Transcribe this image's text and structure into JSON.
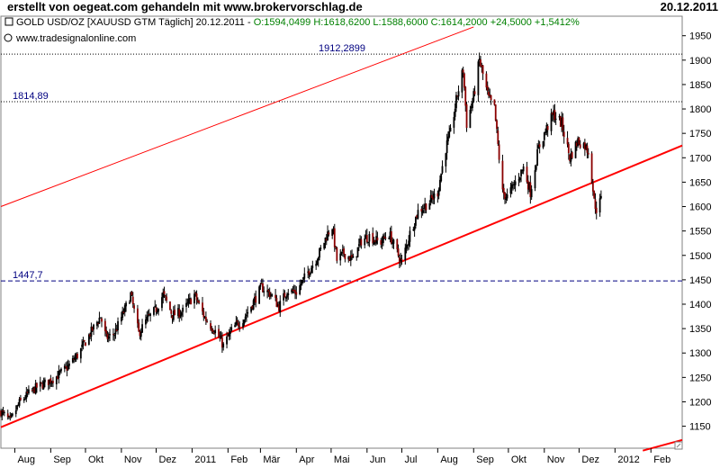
{
  "page": {
    "title_left": "erstellt von oegeat.com gehandeln mit www.brokervorschlag.de",
    "title_right": "20.12.2011"
  },
  "chart_info": {
    "instrument_prefix": "GOLD USD/OZ [XAUUSD GTM  Täglich] 20.12.2011 - ",
    "ohlc_text": "O:1594,0499 H:1618,6200 L:1588,6000 C:1614,2000 +24,5000 +1,5412%",
    "source": "www.tradesignalonline.com",
    "ohlc_color": "#008000"
  },
  "chart_data": {
    "type": "candlestick",
    "title": "GOLD USD/OZ [XAUUSD GTM Täglich] 20.12.2011",
    "ylim": [
      1105,
      1990
    ],
    "yticks": [
      1150,
      1200,
      1250,
      1300,
      1350,
      1400,
      1450,
      1500,
      1550,
      1600,
      1650,
      1700,
      1750,
      1800,
      1850,
      1900,
      1950
    ],
    "xlim": [
      "2010-07-20",
      "2012-02-28"
    ],
    "xticks": [
      {
        "label": "Aug",
        "date": "2010-08-01"
      },
      {
        "label": "Sep",
        "date": "2010-09-01"
      },
      {
        "label": "Okt",
        "date": "2010-10-01"
      },
      {
        "label": "Nov",
        "date": "2010-11-01"
      },
      {
        "label": "Dez",
        "date": "2010-12-01"
      },
      {
        "label": "2011",
        "date": "2011-01-01"
      },
      {
        "label": "Feb",
        "date": "2011-02-01"
      },
      {
        "label": "Mär",
        "date": "2011-03-01"
      },
      {
        "label": "Apr",
        "date": "2011-04-01"
      },
      {
        "label": "Mai",
        "date": "2011-05-01"
      },
      {
        "label": "Jun",
        "date": "2011-06-01"
      },
      {
        "label": "Jul",
        "date": "2011-07-01"
      },
      {
        "label": "Aug",
        "date": "2011-08-01"
      },
      {
        "label": "Sep",
        "date": "2011-09-01"
      },
      {
        "label": "Okt",
        "date": "2011-10-01"
      },
      {
        "label": "Nov",
        "date": "2011-11-01"
      },
      {
        "label": "Dez",
        "date": "2011-12-01"
      },
      {
        "label": "2012",
        "date": "2012-01-01"
      },
      {
        "label": "Feb",
        "date": "2012-02-01"
      }
    ],
    "up_color": "#000000",
    "down_color": "#8b0000",
    "price_path": [
      [
        "2010-07-20",
        1180
      ],
      [
        "2010-07-28",
        1160
      ],
      [
        "2010-08-05",
        1198
      ],
      [
        "2010-08-12",
        1215
      ],
      [
        "2010-08-20",
        1230
      ],
      [
        "2010-08-27",
        1238
      ],
      [
        "2010-09-05",
        1250
      ],
      [
        "2010-09-15",
        1270
      ],
      [
        "2010-09-25",
        1298
      ],
      [
        "2010-10-05",
        1340
      ],
      [
        "2010-10-14",
        1375
      ],
      [
        "2010-10-19",
        1330
      ],
      [
        "2010-10-26",
        1340
      ],
      [
        "2010-11-05",
        1395
      ],
      [
        "2010-11-09",
        1420
      ],
      [
        "2010-11-16",
        1340
      ],
      [
        "2010-11-22",
        1365
      ],
      [
        "2010-12-01",
        1390
      ],
      [
        "2010-12-07",
        1420
      ],
      [
        "2010-12-15",
        1378
      ],
      [
        "2010-12-24",
        1385
      ],
      [
        "2011-01-03",
        1420
      ],
      [
        "2011-01-12",
        1372
      ],
      [
        "2011-01-21",
        1345
      ],
      [
        "2011-01-28",
        1315
      ],
      [
        "2011-02-05",
        1350
      ],
      [
        "2011-02-15",
        1372
      ],
      [
        "2011-02-23",
        1405
      ],
      [
        "2011-03-02",
        1435
      ],
      [
        "2011-03-10",
        1420
      ],
      [
        "2011-03-17",
        1395
      ],
      [
        "2011-03-24",
        1428
      ],
      [
        "2011-04-01",
        1425
      ],
      [
        "2011-04-10",
        1462
      ],
      [
        "2011-04-20",
        1500
      ],
      [
        "2011-04-28",
        1545
      ],
      [
        "2011-05-02",
        1560
      ],
      [
        "2011-05-06",
        1490
      ],
      [
        "2011-05-12",
        1505
      ],
      [
        "2011-05-20",
        1490
      ],
      [
        "2011-05-27",
        1530
      ],
      [
        "2011-06-03",
        1540
      ],
      [
        "2011-06-12",
        1525
      ],
      [
        "2011-06-20",
        1545
      ],
      [
        "2011-06-27",
        1505
      ],
      [
        "2011-07-01",
        1485
      ],
      [
        "2011-07-08",
        1545
      ],
      [
        "2011-07-15",
        1590
      ],
      [
        "2011-07-25",
        1610
      ],
      [
        "2011-08-01",
        1630
      ],
      [
        "2011-08-08",
        1720
      ],
      [
        "2011-08-12",
        1750
      ],
      [
        "2011-08-18",
        1830
      ],
      [
        "2011-08-23",
        1880
      ],
      [
        "2011-08-26",
        1770
      ],
      [
        "2011-09-01",
        1825
      ],
      [
        "2011-09-06",
        1900
      ],
      [
        "2011-09-14",
        1820
      ],
      [
        "2011-09-19",
        1800
      ],
      [
        "2011-09-23",
        1700
      ],
      [
        "2011-09-26",
        1628
      ],
      [
        "2011-09-30",
        1620
      ],
      [
        "2011-10-06",
        1645
      ],
      [
        "2011-10-14",
        1680
      ],
      [
        "2011-10-20",
        1630
      ],
      [
        "2011-10-27",
        1720
      ],
      [
        "2011-11-03",
        1760
      ],
      [
        "2011-11-09",
        1790
      ],
      [
        "2011-11-16",
        1770
      ],
      [
        "2011-11-23",
        1700
      ],
      [
        "2011-11-30",
        1735
      ],
      [
        "2011-12-06",
        1725
      ],
      [
        "2011-12-10",
        1710
      ],
      [
        "2011-12-14",
        1610
      ],
      [
        "2011-12-16",
        1595
      ],
      [
        "2011-12-20",
        1614
      ]
    ],
    "lines": [
      {
        "type": "trend",
        "color": "#ff0000",
        "width": 2,
        "start": [
          "2010-07-20",
          1148
        ],
        "end": [
          "2012-02-28",
          1725
        ]
      },
      {
        "type": "channel",
        "color": "#ff0000",
        "width": 1,
        "start": [
          "2010-07-20",
          1600
        ],
        "end": [
          "2011-09-01",
          1968
        ]
      },
      {
        "type": "trend",
        "color": "#ff0000",
        "width": 2,
        "start": [
          "2012-01-25",
          1100
        ],
        "end": [
          "2012-02-28",
          1122
        ]
      }
    ],
    "levels": [
      {
        "label": "1912,2899",
        "value": 1912.29,
        "style": "dotted",
        "color": "#000000"
      },
      {
        "label": "1814,89",
        "value": 1814.89,
        "style": "dotted",
        "color": "#000000"
      },
      {
        "label": "1447,7",
        "value": 1447.7,
        "style": "dashed",
        "color": "#000080"
      }
    ]
  }
}
